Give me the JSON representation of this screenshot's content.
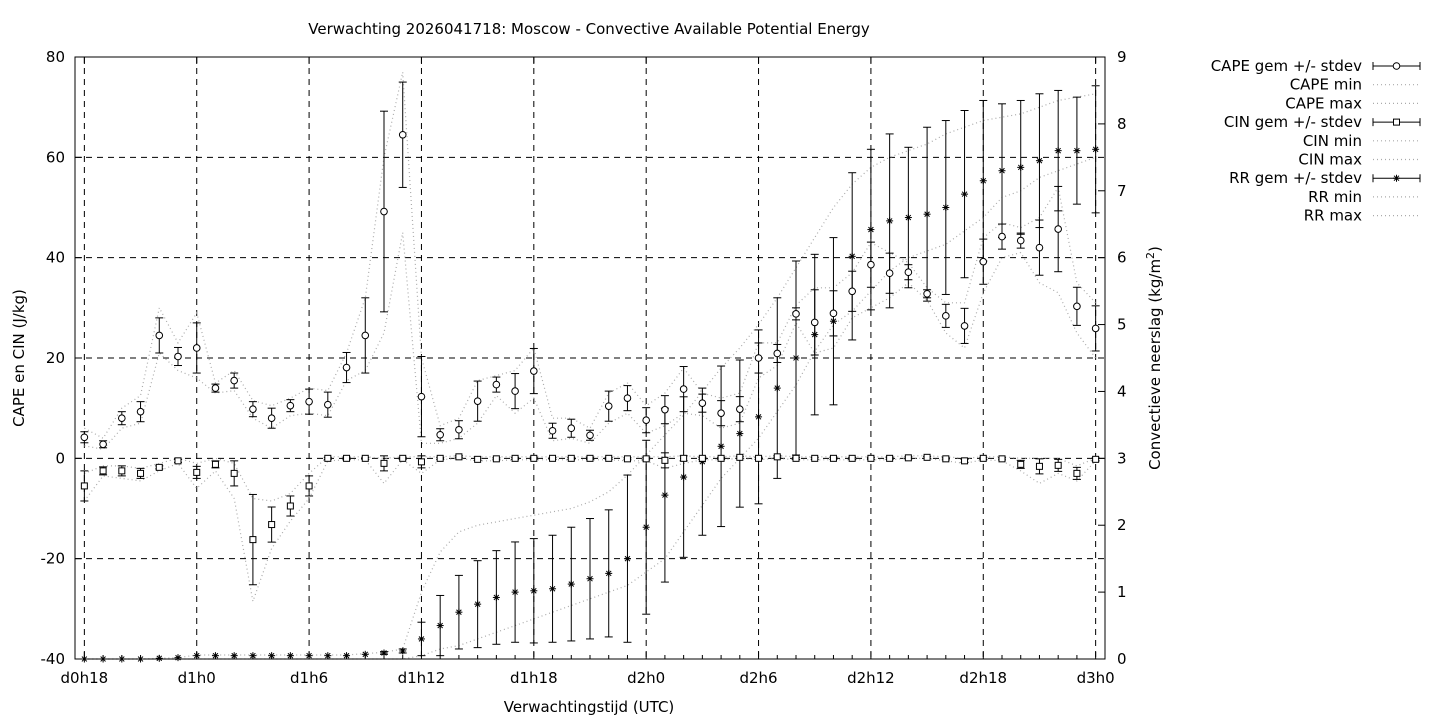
{
  "chart_data": {
    "type": "line",
    "title": "Verwachting 2026041718: Moscow - Convective Available Potential Energy",
    "xlabel": "Verwachtingstijd (UTC)",
    "ylabel": "CAPE en CIN (J/kg)",
    "y2label_main": "Convectieve neerslag (kg/m",
    "y2label_sup": "2",
    "y2label_end": ")",
    "xlim": [
      -0.5,
      54.5
    ],
    "ylim": [
      -40,
      80
    ],
    "y2lim": [
      0,
      9
    ],
    "grid": true,
    "legend_position": "top-right outside",
    "x_ticks": [
      {
        "x": 0,
        "label": "d0h18"
      },
      {
        "x": 6,
        "label": "d1h0"
      },
      {
        "x": 12,
        "label": "d1h6"
      },
      {
        "x": 18,
        "label": "d1h12"
      },
      {
        "x": 24,
        "label": "d1h18"
      },
      {
        "x": 30,
        "label": "d2h0"
      },
      {
        "x": 36,
        "label": "d2h6"
      },
      {
        "x": 42,
        "label": "d2h12"
      },
      {
        "x": 48,
        "label": "d2h18"
      },
      {
        "x": 54,
        "label": "d3h0"
      }
    ],
    "y_ticks": [
      "-40",
      "-20",
      "0",
      "20",
      "40",
      "60",
      "80"
    ],
    "y2_ticks": [
      "0",
      "1",
      "2",
      "3",
      "4",
      "5",
      "6",
      "7",
      "8",
      "9"
    ],
    "legend": [
      "CAPE gem +/- stdev",
      "CAPE min",
      "CAPE max",
      "CIN gem +/- stdev",
      "CIN min",
      "CIN max",
      "RR gem +/- stdev",
      "RR min",
      "RR max"
    ],
    "cape_mean": [
      4.2,
      2.8,
      8.0,
      9.3,
      24.5,
      20.3,
      22.0,
      14.0,
      15.5,
      9.8,
      8.0,
      10.5,
      11.3,
      10.7,
      18.1,
      24.5,
      49.2,
      64.5,
      12.3,
      4.7,
      5.7,
      11.4,
      14.7,
      13.4,
      17.4,
      5.5,
      6.0,
      4.6,
      10.4,
      12.0,
      7.6,
      9.7,
      13.8,
      11.0,
      9.0,
      9.8,
      20.0,
      20.9,
      28.8,
      27.1,
      28.9,
      33.3,
      38.6,
      36.9,
      37.1,
      32.8,
      28.4,
      26.4,
      39.2,
      44.2,
      43.4,
      42.0,
      45.7,
      30.3,
      25.9
    ],
    "cape_sd": [
      1.1,
      0.7,
      1.3,
      2.0,
      3.5,
      1.8,
      5.0,
      0.8,
      1.5,
      1.5,
      2.0,
      1.2,
      2.5,
      2.5,
      3.0,
      7.5,
      20.0,
      10.5,
      8.0,
      1.2,
      1.8,
      4.0,
      1.5,
      3.5,
      4.5,
      1.5,
      1.8,
      1.0,
      3.0,
      2.5,
      2.5,
      2.8,
      4.5,
      1.8,
      2.5,
      2.5,
      3.0,
      1.8,
      1.2,
      6.5,
      4.5,
      4.0,
      4.5,
      4.0,
      1.5,
      0.8,
      2.3,
      3.5,
      4.5,
      2.5,
      1.5,
      5.5,
      8.5,
      3.8,
      4.5
    ],
    "cape_min": [
      2.5,
      1.8,
      6.0,
      7.0,
      21.0,
      17.5,
      16.0,
      13.0,
      13.5,
      8.0,
      6.0,
      8.5,
      9.0,
      8.5,
      15.5,
      17.5,
      25.0,
      45.0,
      3.0,
      3.0,
      4.0,
      7.0,
      12.5,
      9.0,
      12.0,
      3.5,
      4.0,
      3.0,
      7.0,
      9.0,
      5.0,
      6.5,
      9.0,
      8.5,
      6.0,
      7.0,
      16.0,
      18.5,
      27.0,
      21.0,
      22.0,
      28.0,
      30.0,
      32.0,
      35.0,
      31.5,
      25.0,
      22.0,
      33.0,
      40.0,
      41.0,
      35.0,
      33.0,
      25.0,
      20.0
    ],
    "cape_max": [
      6.0,
      4.0,
      10.0,
      12.5,
      30.0,
      23.0,
      29.0,
      15.0,
      17.5,
      11.5,
      10.5,
      12.0,
      14.0,
      13.5,
      21.0,
      32.0,
      60.0,
      77.0,
      20.0,
      6.5,
      8.0,
      15.5,
      16.5,
      17.5,
      22.0,
      8.0,
      8.0,
      6.0,
      13.0,
      15.0,
      10.5,
      13.0,
      18.0,
      13.0,
      12.0,
      13.0,
      23.0,
      23.0,
      30.5,
      34.0,
      34.0,
      37.0,
      43.0,
      41.0,
      39.0,
      34.0,
      31.0,
      31.0,
      44.0,
      47.0,
      46.0,
      48.0,
      54.0,
      35.0,
      31.0
    ],
    "cin_mean": [
      -5.5,
      -2.5,
      -2.5,
      -3.0,
      -1.8,
      -0.5,
      -2.8,
      -1.2,
      -3.0,
      -16.2,
      -13.2,
      -9.5,
      -5.5,
      0.0,
      0.0,
      0.0,
      -1.0,
      0.0,
      -0.7,
      0.0,
      0.3,
      -0.2,
      -0.1,
      0.0,
      0.0,
      0.0,
      0.0,
      0.0,
      0.0,
      -0.1,
      -0.1,
      -0.4,
      0.0,
      0.0,
      0.0,
      0.2,
      0.0,
      0.3,
      0.0,
      0.0,
      0.0,
      0.0,
      0.0,
      0.0,
      0.1,
      0.2,
      -0.1,
      -0.5,
      0.0,
      -0.1,
      -1.2,
      -1.6,
      -1.4,
      -3.0,
      -0.2
    ],
    "cin_sd": [
      3.0,
      0.8,
      1.0,
      1.0,
      0.3,
      0.3,
      1.2,
      0.7,
      2.5,
      9.0,
      3.5,
      2.0,
      2.0,
      0.2,
      0.2,
      0.2,
      1.5,
      0.2,
      1.2,
      0.2,
      0.2,
      0.2,
      0.2,
      0.2,
      0.2,
      0.2,
      0.2,
      0.2,
      0.2,
      0.2,
      0.2,
      1.5,
      0.5,
      0.2,
      0.2,
      0.2,
      0.2,
      0.2,
      0.2,
      0.2,
      0.2,
      0.2,
      0.2,
      0.2,
      0.2,
      0.2,
      0.2,
      0.3,
      0.2,
      0.2,
      0.8,
      1.5,
      1.2,
      1.2,
      0.3
    ],
    "cin_min": [
      -8.5,
      -3.5,
      -4.0,
      -4.5,
      -2.5,
      -1.0,
      -6.0,
      -2.5,
      -8.0,
      -28.5,
      -18.0,
      -12.5,
      -8.0,
      -0.5,
      -0.3,
      -0.3,
      -5.0,
      -0.3,
      -3.0,
      -0.3,
      0.0,
      -0.5,
      -0.5,
      -0.3,
      -0.3,
      -0.3,
      -0.3,
      -0.3,
      -0.3,
      -0.5,
      -0.5,
      -2.0,
      -1.0,
      -0.3,
      -0.3,
      0.0,
      -0.3,
      0.0,
      -0.3,
      -0.3,
      -0.3,
      -0.3,
      -0.3,
      -0.3,
      0.0,
      0.0,
      -0.5,
      -1.0,
      -0.3,
      -0.5,
      -2.5,
      -5.0,
      -3.0,
      -4.5,
      -0.5
    ],
    "cin_max": [
      -3.0,
      -1.5,
      -1.5,
      -2.0,
      -1.0,
      0.0,
      -1.0,
      0.0,
      -1.0,
      -8.0,
      -8.5,
      -7.0,
      -3.0,
      0.3,
      0.3,
      0.3,
      0.0,
      0.3,
      0.3,
      0.3,
      0.5,
      0.3,
      0.3,
      0.3,
      0.3,
      0.3,
      0.3,
      0.3,
      0.3,
      0.3,
      0.3,
      0.3,
      0.5,
      0.3,
      0.3,
      0.5,
      0.3,
      0.5,
      0.3,
      0.3,
      0.3,
      0.3,
      0.3,
      0.3,
      0.5,
      0.5,
      0.3,
      0.0,
      0.3,
      0.3,
      0.0,
      0.0,
      0.0,
      -1.5,
      0.0
    ],
    "rr_mean": [
      0.0,
      0.0,
      0.0,
      0.0,
      0.01,
      0.02,
      0.05,
      0.05,
      0.05,
      0.05,
      0.05,
      0.05,
      0.05,
      0.05,
      0.05,
      0.07,
      0.09,
      0.12,
      0.3,
      0.5,
      0.7,
      0.82,
      0.92,
      1.0,
      1.02,
      1.05,
      1.12,
      1.2,
      1.28,
      1.5,
      1.97,
      2.45,
      2.72,
      2.95,
      3.18,
      3.37,
      3.62,
      4.05,
      4.5,
      4.85,
      5.05,
      6.02,
      6.42,
      6.55,
      6.6,
      6.65,
      6.75,
      6.95,
      7.15,
      7.3,
      7.35,
      7.45,
      7.6,
      7.6,
      7.62
    ],
    "rr_sd": [
      0.0,
      0.0,
      0.0,
      0.0,
      0.0,
      0.0,
      0.0,
      0.0,
      0.0,
      0.0,
      0.0,
      0.0,
      0.0,
      0.0,
      0.0,
      0.0,
      0.02,
      0.03,
      0.25,
      0.45,
      0.55,
      0.65,
      0.7,
      0.75,
      0.78,
      0.8,
      0.85,
      0.9,
      0.95,
      1.25,
      1.3,
      1.3,
      1.2,
      1.1,
      1.2,
      1.1,
      1.3,
      1.35,
      1.45,
      1.2,
      1.25,
      1.25,
      1.2,
      1.3,
      1.05,
      1.3,
      1.3,
      1.25,
      1.2,
      1.0,
      1.0,
      1.0,
      0.9,
      0.8,
      0.95
    ],
    "rr_min": [
      0.0,
      0.0,
      0.0,
      0.0,
      0.0,
      0.0,
      0.0,
      0.0,
      0.0,
      0.0,
      0.0,
      0.0,
      0.0,
      0.0,
      0.0,
      0.0,
      0.0,
      0.0,
      0.05,
      0.15,
      0.2,
      0.3,
      0.4,
      0.5,
      0.6,
      0.7,
      0.8,
      0.9,
      1.0,
      1.1,
      1.3,
      1.5,
      1.9,
      2.3,
      2.7,
      3.0,
      3.3,
      3.7,
      4.1,
      4.6,
      5.0,
      5.2,
      5.5,
      5.8,
      6.0,
      6.1,
      6.2,
      6.4,
      6.6,
      6.9,
      7.0,
      7.2,
      7.3,
      7.4,
      7.5
    ],
    "rr_max": [
      0.0,
      0.0,
      0.0,
      0.0,
      0.01,
      0.02,
      0.06,
      0.06,
      0.06,
      0.06,
      0.06,
      0.06,
      0.06,
      0.06,
      0.06,
      0.08,
      0.1,
      0.15,
      1.0,
      1.6,
      1.9,
      2.0,
      2.05,
      2.1,
      2.15,
      2.2,
      2.25,
      2.35,
      2.5,
      2.75,
      3.05,
      3.35,
      3.65,
      4.0,
      4.35,
      4.65,
      5.0,
      5.4,
      5.85,
      6.3,
      6.75,
      7.1,
      7.35,
      7.5,
      7.6,
      7.7,
      7.85,
      7.95,
      8.05,
      8.1,
      8.15,
      8.25,
      8.35,
      8.4,
      8.45
    ]
  }
}
